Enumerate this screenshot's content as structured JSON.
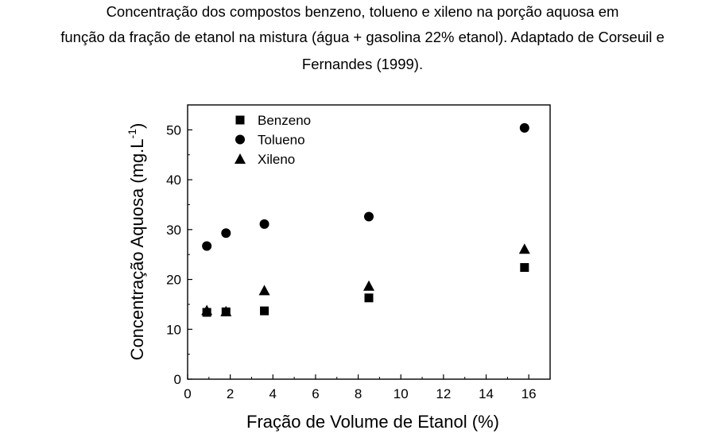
{
  "caption": {
    "line1": "Concentração dos compostos benzeno, tolueno e xileno na porção aquosa em",
    "line2": "função da fração de etanol na mistura (água + gasolina 22% etanol). Adaptado de Corseuil e",
    "line3": "Fernandes (1999)."
  },
  "chart_data": {
    "type": "scatter",
    "title": "",
    "xlabel": "Fração de Volume de Etanol (%)",
    "ylabel_main": "Concentração Aquosa (mg.L",
    "ylabel_sup": "-1",
    "ylabel_end": ")",
    "xlim": [
      0,
      17
    ],
    "ylim": [
      0,
      55
    ],
    "xticks": [
      0,
      2,
      4,
      6,
      8,
      10,
      12,
      14,
      16
    ],
    "yticks": [
      0,
      10,
      20,
      30,
      40,
      50
    ],
    "grid": false,
    "legend_position": "top-left",
    "series": [
      {
        "name": "Benzeno",
        "marker": "square",
        "x": [
          0.9,
          1.8,
          3.6,
          8.5,
          15.8
        ],
        "y": [
          13.4,
          13.5,
          13.7,
          16.3,
          22.4
        ]
      },
      {
        "name": "Tolueno",
        "marker": "circle",
        "x": [
          0.9,
          1.8,
          3.6,
          8.5,
          15.8
        ],
        "y": [
          26.7,
          29.3,
          31.1,
          32.6,
          50.4
        ]
      },
      {
        "name": "Xileno",
        "marker": "triangle",
        "x": [
          0.9,
          1.8,
          3.6,
          8.5,
          15.8
        ],
        "y": [
          13.8,
          13.6,
          17.8,
          18.7,
          26.1
        ]
      }
    ]
  }
}
